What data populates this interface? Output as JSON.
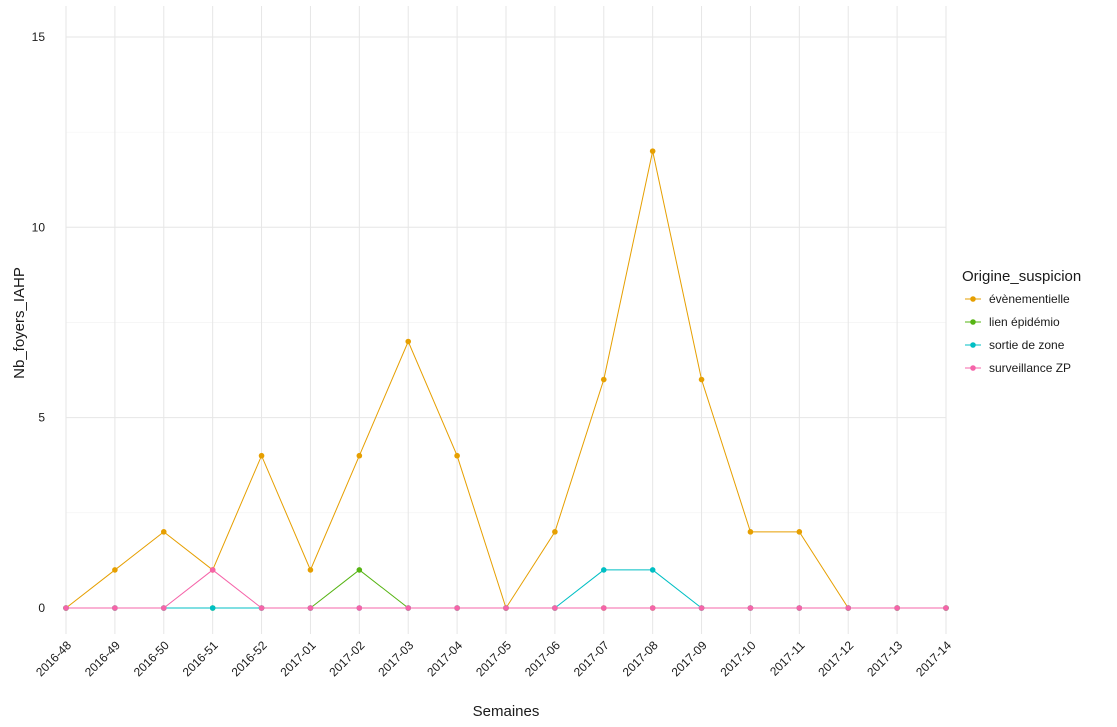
{
  "chart_data": {
    "type": "line",
    "xlabel": "Semaines",
    "ylabel": "Nb_foyers_IAHP",
    "categories": [
      "2016-48",
      "2016-49",
      "2016-50",
      "2016-51",
      "2016-52",
      "2017-01",
      "2017-02",
      "2017-03",
      "2017-04",
      "2017-05",
      "2017-06",
      "2017-07",
      "2017-08",
      "2017-09",
      "2017-10",
      "2017-11",
      "2017-12",
      "2017-13",
      "2017-14"
    ],
    "ylim": [
      -0.7,
      15.8
    ],
    "yticks": [
      "0",
      "5",
      "10",
      "15"
    ],
    "grid": true,
    "legend": {
      "title": "Origine_suspicion",
      "position": "right"
    },
    "series": [
      {
        "name": "évènementielle",
        "color": "#E69F00",
        "values": [
          0,
          1,
          2,
          1,
          4,
          1,
          4,
          7,
          4,
          0,
          2,
          6,
          12,
          6,
          2,
          2,
          0,
          0,
          0
        ]
      },
      {
        "name": "lien épidémio",
        "color": "#56B413",
        "values": [
          0,
          0,
          0,
          0,
          0,
          0,
          1,
          0,
          0,
          0,
          0,
          0,
          0,
          0,
          0,
          0,
          0,
          0,
          0
        ]
      },
      {
        "name": "sortie de zone",
        "color": "#00BFC4",
        "values": [
          0,
          0,
          0,
          0,
          0,
          0,
          0,
          0,
          0,
          0,
          0,
          1,
          1,
          0,
          0,
          0,
          0,
          0,
          0
        ]
      },
      {
        "name": "surveillance ZP",
        "color": "#F564A9",
        "values": [
          0,
          0,
          0,
          1,
          0,
          0,
          0,
          0,
          0,
          0,
          0,
          0,
          0,
          0,
          0,
          0,
          0,
          0,
          0
        ]
      }
    ]
  }
}
